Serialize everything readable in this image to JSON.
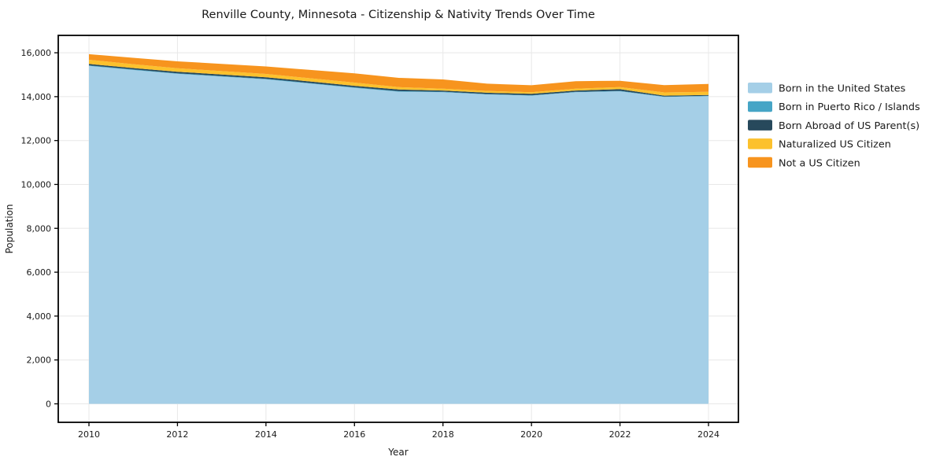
{
  "chart_data": {
    "type": "area",
    "stacked": true,
    "title": "Renville County, Minnesota - Citizenship & Nativity Trends Over Time",
    "xlabel": "Year",
    "ylabel": "Population",
    "x": [
      2010,
      2011,
      2012,
      2013,
      2014,
      2015,
      2016,
      2017,
      2018,
      2019,
      2020,
      2021,
      2022,
      2023,
      2024
    ],
    "xticks": [
      2010,
      2012,
      2014,
      2016,
      2018,
      2020,
      2022,
      2024
    ],
    "yticks": [
      0,
      2000,
      4000,
      6000,
      8000,
      10000,
      12000,
      14000,
      16000
    ],
    "ylim": [
      0,
      16800
    ],
    "xlim": [
      2009.3,
      2024.7
    ],
    "grid": true,
    "grid_color": "#e8e8e8",
    "background_color": "#ffffff",
    "spine_color": "#000000",
    "legend_position": "right",
    "series": [
      {
        "name": "Born in the United States",
        "color": "#a5cfe7",
        "values": [
          15400,
          15215,
          15040,
          14915,
          14790,
          14595,
          14400,
          14225,
          14200,
          14100,
          14045,
          14200,
          14245,
          13985,
          14020
        ]
      },
      {
        "name": "Born in Puerto Rico / Islands",
        "color": "#46a5c6",
        "values": [
          25,
          25,
          25,
          25,
          25,
          25,
          25,
          25,
          25,
          20,
          20,
          20,
          20,
          20,
          20
        ]
      },
      {
        "name": "Born Abroad of US Parent(s)",
        "color": "#27495c",
        "values": [
          65,
          65,
          70,
          70,
          70,
          70,
          70,
          75,
          55,
          60,
          65,
          60,
          75,
          40,
          40
        ]
      },
      {
        "name": "Naturalized US Citizen",
        "color": "#fcc12d",
        "values": [
          190,
          175,
          160,
          155,
          150,
          150,
          145,
          110,
          85,
          80,
          70,
          85,
          95,
          150,
          140
        ]
      },
      {
        "name": "Not a US Citizen",
        "color": "#f7941e",
        "values": [
          255,
          290,
          315,
          330,
          340,
          380,
          420,
          420,
          420,
          330,
          320,
          340,
          290,
          330,
          360
        ]
      }
    ]
  }
}
